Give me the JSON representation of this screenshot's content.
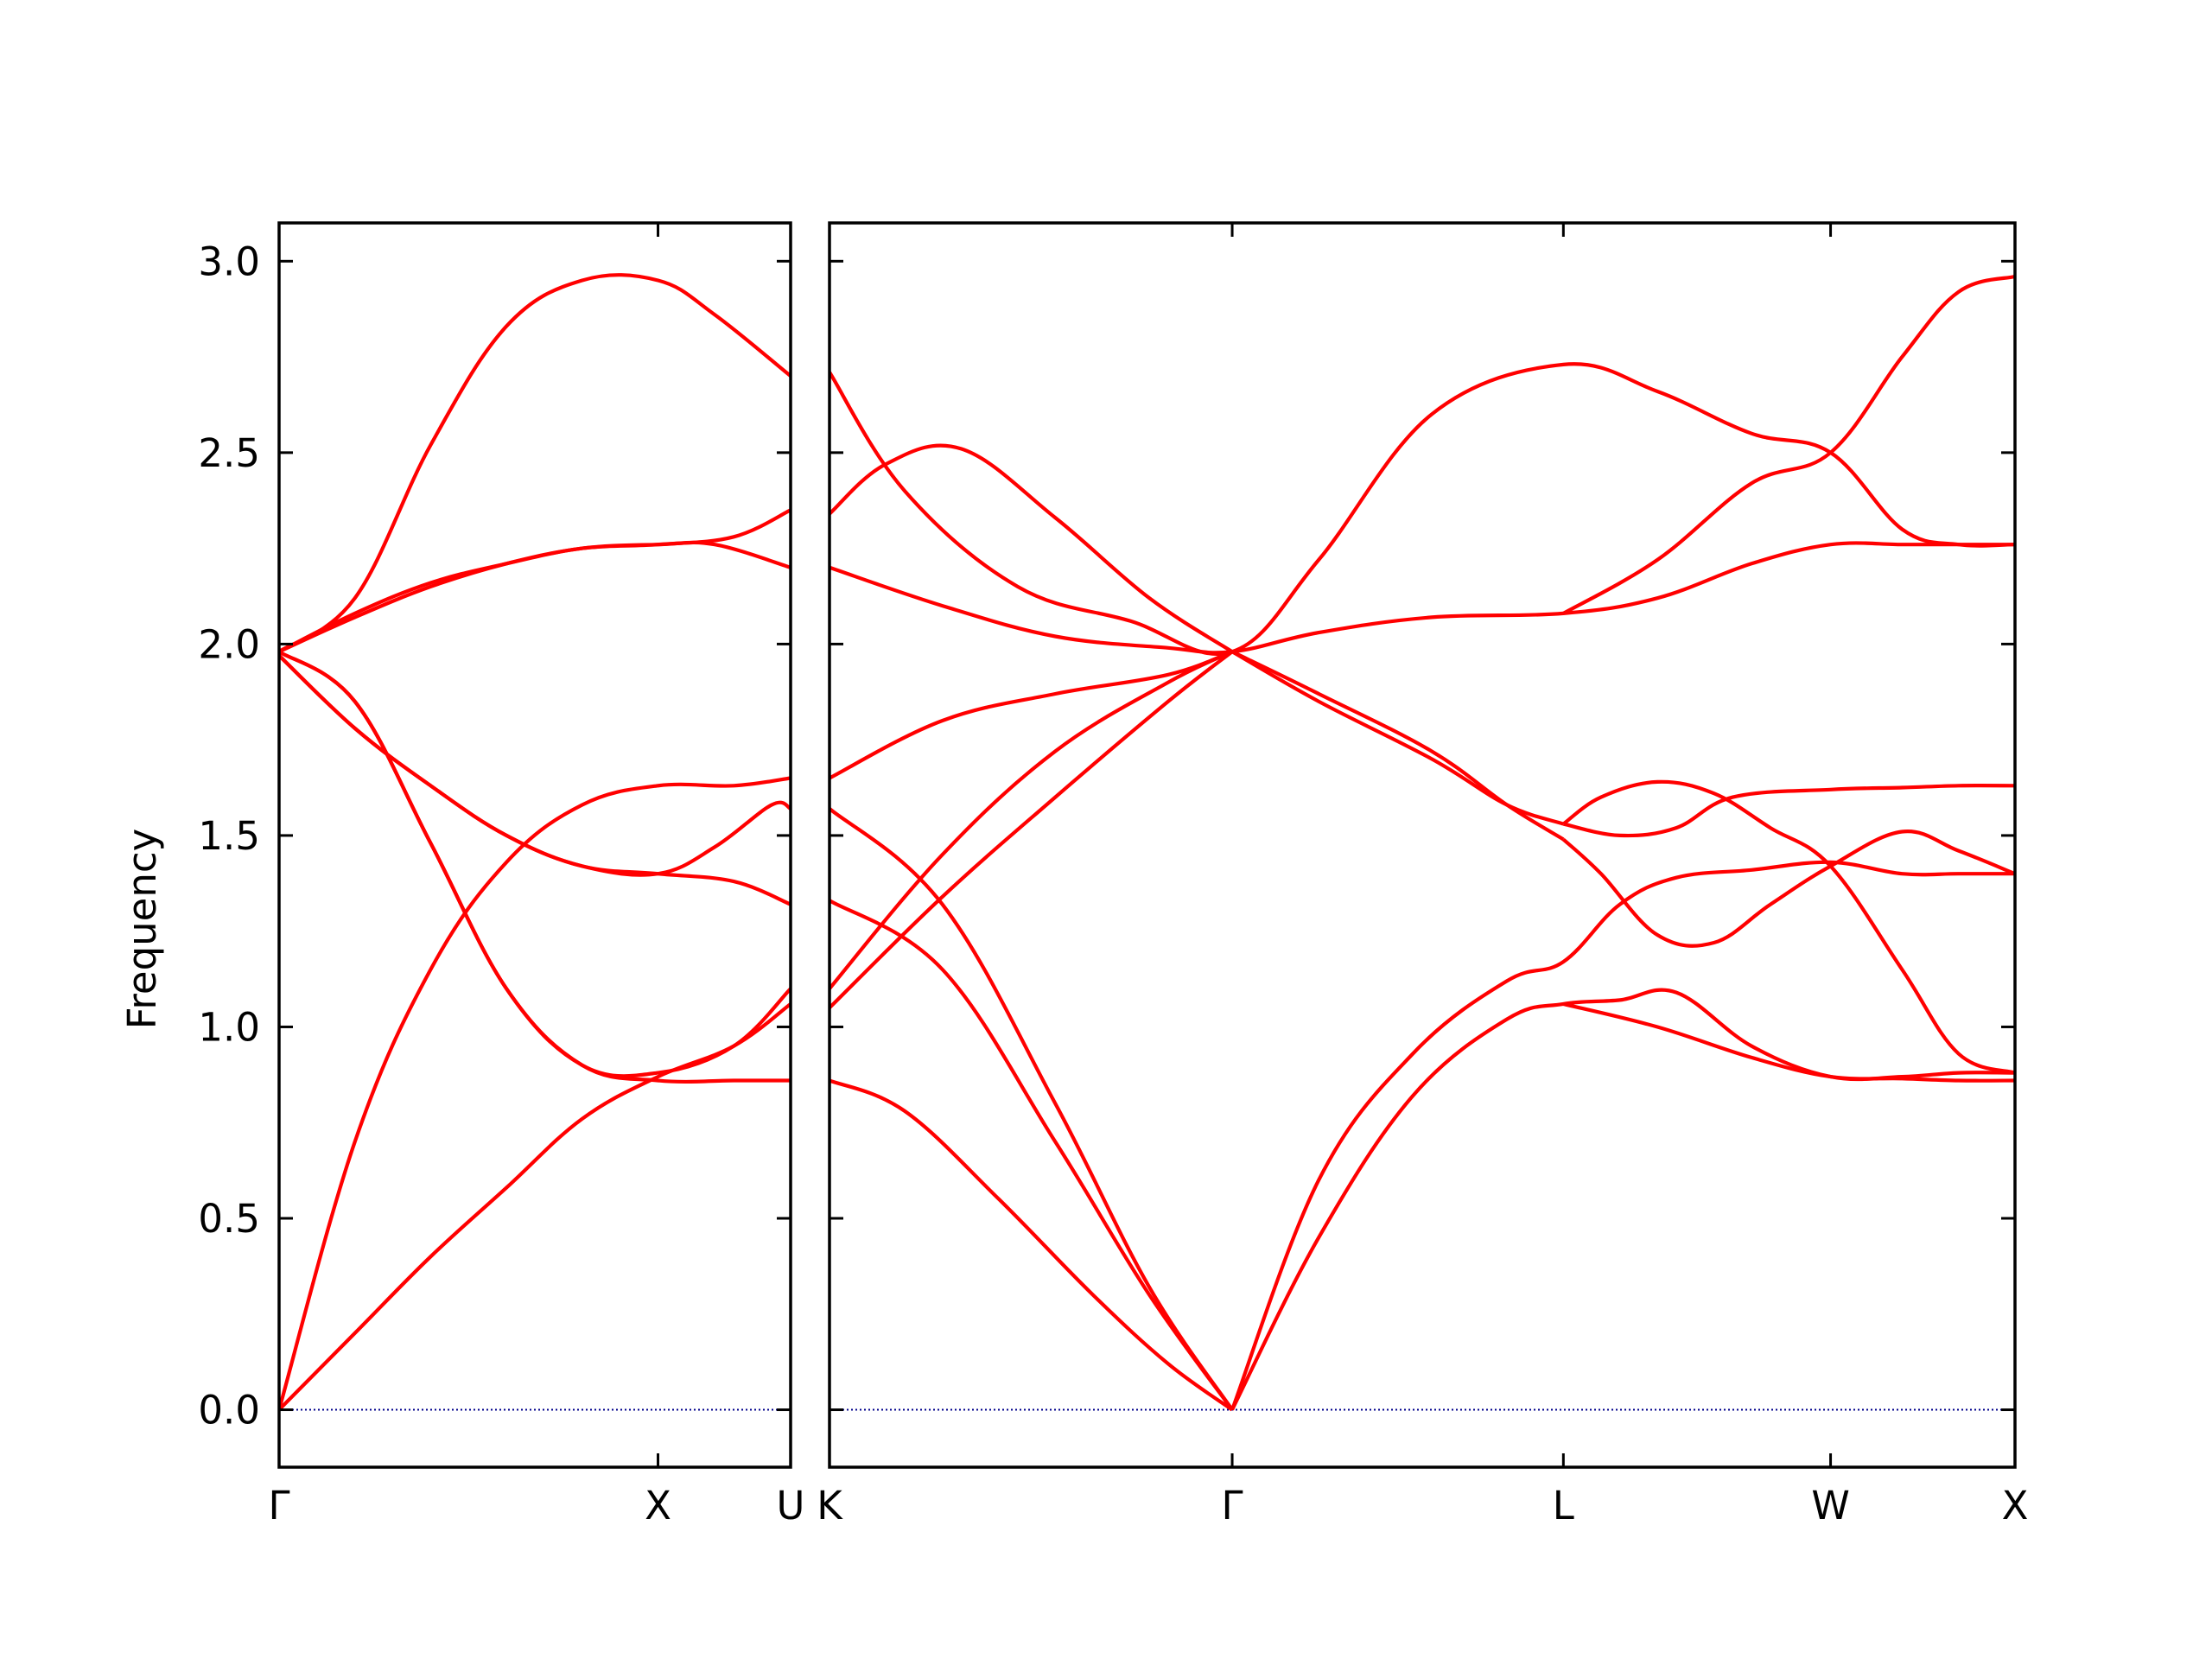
{
  "chart_data": {
    "type": "line",
    "ylabel": "Frequency",
    "ylim": [
      -0.15,
      3.1
    ],
    "yticks": [
      0.0,
      0.5,
      1.0,
      1.5,
      2.0,
      2.5,
      3.0
    ],
    "ytick_labels": [
      "0.0",
      "0.5",
      "1.0",
      "1.5",
      "2.0",
      "2.5",
      "3.0"
    ],
    "line_color": "#ff0000",
    "zero_line_color": "#00008b",
    "panels": [
      {
        "xlim": [
          0,
          1.35
        ],
        "ticks": [
          {
            "x": 0,
            "label": "Γ"
          },
          {
            "x": 1.0,
            "label": "X"
          },
          {
            "x": 1.35,
            "label": "U"
          }
        ],
        "series": [
          {
            "x": [
              0,
              0.2,
              0.4,
              0.6,
              0.8,
              1.0,
              1.15,
              1.35
            ],
            "y": [
              1.98,
              2.12,
              2.52,
              2.83,
              2.95,
              2.95,
              2.86,
              2.7
            ]
          },
          {
            "x": [
              0,
              0.2,
              0.4,
              0.6,
              0.8,
              1.0,
              1.15,
              1.35
            ],
            "y": [
              1.98,
              2.08,
              2.16,
              2.21,
              2.25,
              2.26,
              2.26,
              2.2
            ]
          },
          {
            "x": [
              0,
              0.2,
              0.4,
              0.6,
              0.8,
              1.0,
              1.2,
              1.35
            ],
            "y": [
              1.98,
              2.07,
              2.15,
              2.21,
              2.25,
              2.26,
              2.28,
              2.35
            ]
          },
          {
            "x": [
              0,
              0.2,
              0.4,
              0.6,
              0.8,
              1.0,
              1.2,
              1.35
            ],
            "y": [
              1.97,
              1.78,
              1.63,
              1.5,
              1.42,
              1.4,
              1.38,
              1.32
            ]
          },
          {
            "x": [
              0,
              0.2,
              0.4,
              0.6,
              0.8,
              1.0,
              1.15,
              1.3,
              1.35
            ],
            "y": [
              1.97,
              1.78,
              1.63,
              1.5,
              1.42,
              1.4,
              1.47,
              1.58,
              1.57
            ]
          },
          {
            "x": [
              0,
              0.2,
              0.4,
              0.6,
              0.8,
              1.0,
              1.2,
              1.3,
              1.35
            ],
            "y": [
              1.98,
              1.85,
              1.48,
              1.1,
              0.9,
              0.86,
              0.86,
              0.86,
              0.86
            ]
          },
          {
            "x": [
              0,
              0.2,
              0.4,
              0.6,
              0.8,
              1.0,
              1.2,
              1.35
            ],
            "y": [
              1.98,
              1.85,
              1.48,
              1.1,
              0.9,
              0.88,
              0.95,
              1.1
            ]
          },
          {
            "x": [
              0,
              0.2,
              0.4,
              0.6,
              0.8,
              1.0,
              1.2,
              1.35
            ],
            "y": [
              0,
              0.7,
              1.15,
              1.43,
              1.58,
              1.63,
              1.63,
              1.65
            ]
          },
          {
            "x": [
              0,
              0.2,
              0.4,
              0.6,
              0.8,
              1.0,
              1.2,
              1.35
            ],
            "y": [
              0,
              0.2,
              0.4,
              0.58,
              0.76,
              0.87,
              0.95,
              1.06
            ]
          }
        ]
      },
      {
        "xlim": [
          0,
          3.15
        ],
        "ticks": [
          {
            "x": 0,
            "label": "K"
          },
          {
            "x": 1.07,
            "label": "Γ"
          },
          {
            "x": 1.95,
            "label": "L"
          },
          {
            "x": 2.66,
            "label": "W"
          },
          {
            "x": 3.15,
            "label": "X"
          }
        ],
        "series": [
          {
            "x": [
              0,
              0.2,
              0.5,
              0.8,
              1.07,
              1.3,
              1.6,
              1.95,
              2.2,
              2.45,
              2.66,
              2.85,
              3.0,
              3.15
            ],
            "y": [
              2.71,
              2.4,
              2.15,
              2.06,
              1.98,
              2.22,
              2.6,
              2.73,
              2.66,
              2.55,
              2.5,
              2.3,
              2.26,
              2.26
            ]
          },
          {
            "x": [
              0,
              0.15,
              0.35,
              0.6,
              0.85,
              1.07
            ],
            "y": [
              2.34,
              2.47,
              2.51,
              2.33,
              2.12,
              1.98
            ]
          },
          {
            "x": [
              0,
              0.3,
              0.6,
              0.9,
              1.07,
              1.3,
              1.6,
              1.95,
              2.2,
              2.45,
              2.66,
              2.85,
              3.0,
              3.15
            ],
            "y": [
              2.2,
              2.1,
              2.02,
              1.99,
              1.98,
              2.03,
              2.07,
              2.08,
              2.12,
              2.21,
              2.26,
              2.26,
              2.26,
              2.26
            ]
          },
          {
            "x": [
              1.95,
              2.2,
              2.45,
              2.66,
              2.85,
              3.0,
              3.15
            ],
            "y": [
              2.08,
              2.22,
              2.42,
              2.5,
              2.75,
              2.92,
              2.96
            ]
          },
          {
            "x": [
              0,
              0.3,
              0.6,
              0.9,
              1.07
            ],
            "y": [
              1.65,
              1.8,
              1.87,
              1.92,
              1.98
            ]
          },
          {
            "x": [
              0,
              0.3,
              0.6,
              0.9,
              1.07
            ],
            "y": [
              1.1,
              1.45,
              1.72,
              1.9,
              1.98
            ]
          },
          {
            "x": [
              0,
              0.3,
              0.6,
              0.9,
              1.07
            ],
            "y": [
              1.05,
              1.34,
              1.6,
              1.85,
              1.98
            ]
          },
          {
            "x": [
              0,
              0.3,
              0.6,
              0.85,
              1.07
            ],
            "y": [
              1.57,
              1.32,
              0.8,
              0.32,
              0.0
            ]
          },
          {
            "x": [
              0,
              0.3,
              0.6,
              0.85,
              1.07
            ],
            "y": [
              1.33,
              1.15,
              0.7,
              0.3,
              0.0
            ]
          },
          {
            "x": [
              0,
              0.2,
              0.45,
              0.7,
              0.9,
              1.07
            ],
            "y": [
              0.86,
              0.78,
              0.55,
              0.3,
              0.12,
              0.0
            ]
          },
          {
            "x": [
              1.07,
              1.3,
              1.6,
              1.8,
              1.95
            ],
            "y": [
              1.98,
              1.85,
              1.7,
              1.58,
              1.53
            ]
          },
          {
            "x": [
              1.07,
              1.3,
              1.6,
              1.8,
              1.95
            ],
            "y": [
              1.98,
              1.87,
              1.72,
              1.58,
              1.49
            ]
          },
          {
            "x": [
              1.95,
              2.1,
              2.25,
              2.4,
              2.66,
              2.85,
              3.0,
              3.15
            ],
            "y": [
              1.53,
              1.5,
              1.52,
              1.6,
              1.62,
              1.625,
              1.63,
              1.63
            ]
          },
          {
            "x": [
              1.95,
              2.05,
              2.2,
              2.35,
              2.5,
              2.66,
              2.85,
              3.0,
              3.15
            ],
            "y": [
              1.53,
              1.6,
              1.64,
              1.61,
              1.52,
              1.42,
              1.15,
              0.93,
              0.88
            ]
          },
          {
            "x": [
              1.95,
              2.05,
              2.2,
              2.35,
              2.5,
              2.66,
              2.85,
              3.0,
              3.15
            ],
            "y": [
              1.49,
              1.4,
              1.24,
              1.22,
              1.32,
              1.42,
              1.51,
              1.46,
              1.4
            ]
          },
          {
            "x": [
              1.07,
              1.3,
              1.55,
              1.8,
              1.95,
              2.1,
              2.25,
              2.45,
              2.66,
              2.85,
              3.0,
              3.15
            ],
            "y": [
              0.0,
              0.6,
              0.93,
              1.12,
              1.17,
              1.32,
              1.39,
              1.41,
              1.43,
              1.4,
              1.4,
              1.4
            ]
          },
          {
            "x": [
              1.07,
              1.3,
              1.55,
              1.8,
              1.95,
              2.1,
              2.25,
              2.45,
              2.66,
              2.85,
              3.0,
              3.15
            ],
            "y": [
              0.0,
              0.45,
              0.82,
              1.02,
              1.06,
              1.07,
              1.09,
              0.95,
              0.87,
              0.87,
              0.88,
              0.88
            ]
          },
          {
            "x": [
              1.95,
              2.2,
              2.45,
              2.66,
              2.85,
              3.0,
              3.15
            ],
            "y": [
              1.06,
              1.0,
              0.92,
              0.87,
              0.865,
              0.86,
              0.86
            ]
          }
        ]
      }
    ]
  }
}
